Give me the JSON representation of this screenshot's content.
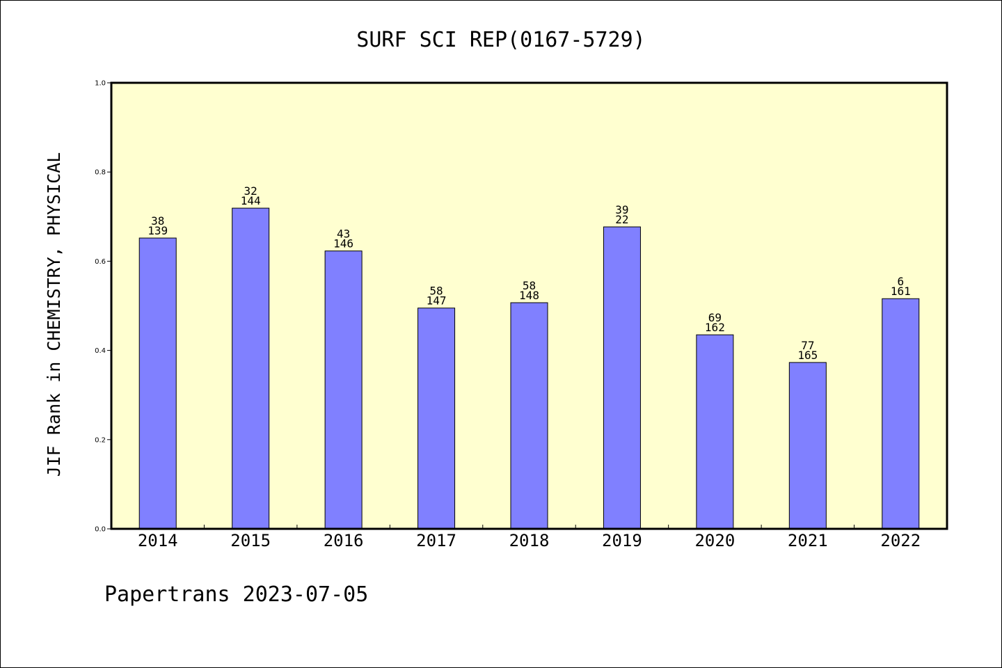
{
  "chart_data": {
    "type": "bar",
    "title": "SURF SCI REP(0167-5729)",
    "ylabel": "JIF Rank in CHEMISTRY, PHYSICAL",
    "xlabel": "",
    "ylim": [
      0,
      1.0
    ],
    "yticks": [
      "0.0",
      "0.2",
      "0.4",
      "0.6",
      "0.8",
      "1.0"
    ],
    "categories": [
      "2014",
      "2015",
      "2016",
      "2017",
      "2018",
      "2019",
      "2020",
      "2021",
      "2022"
    ],
    "values": [
      0.652,
      0.719,
      0.623,
      0.495,
      0.507,
      0.677,
      0.435,
      0.373,
      0.516
    ],
    "labels_top": [
      "38",
      "32",
      "43",
      "58",
      "58",
      "39",
      "69",
      "77",
      "6"
    ],
    "labels_bottom": [
      "139",
      "144",
      "146",
      "147",
      "148",
      "22",
      "162",
      "165",
      "161"
    ],
    "grid": false,
    "colors": {
      "plot_background": "#ffffd0",
      "bar_fill": "#8080ff",
      "bar_stroke": "#000000"
    }
  },
  "footer": "Papertrans 2023-07-05"
}
